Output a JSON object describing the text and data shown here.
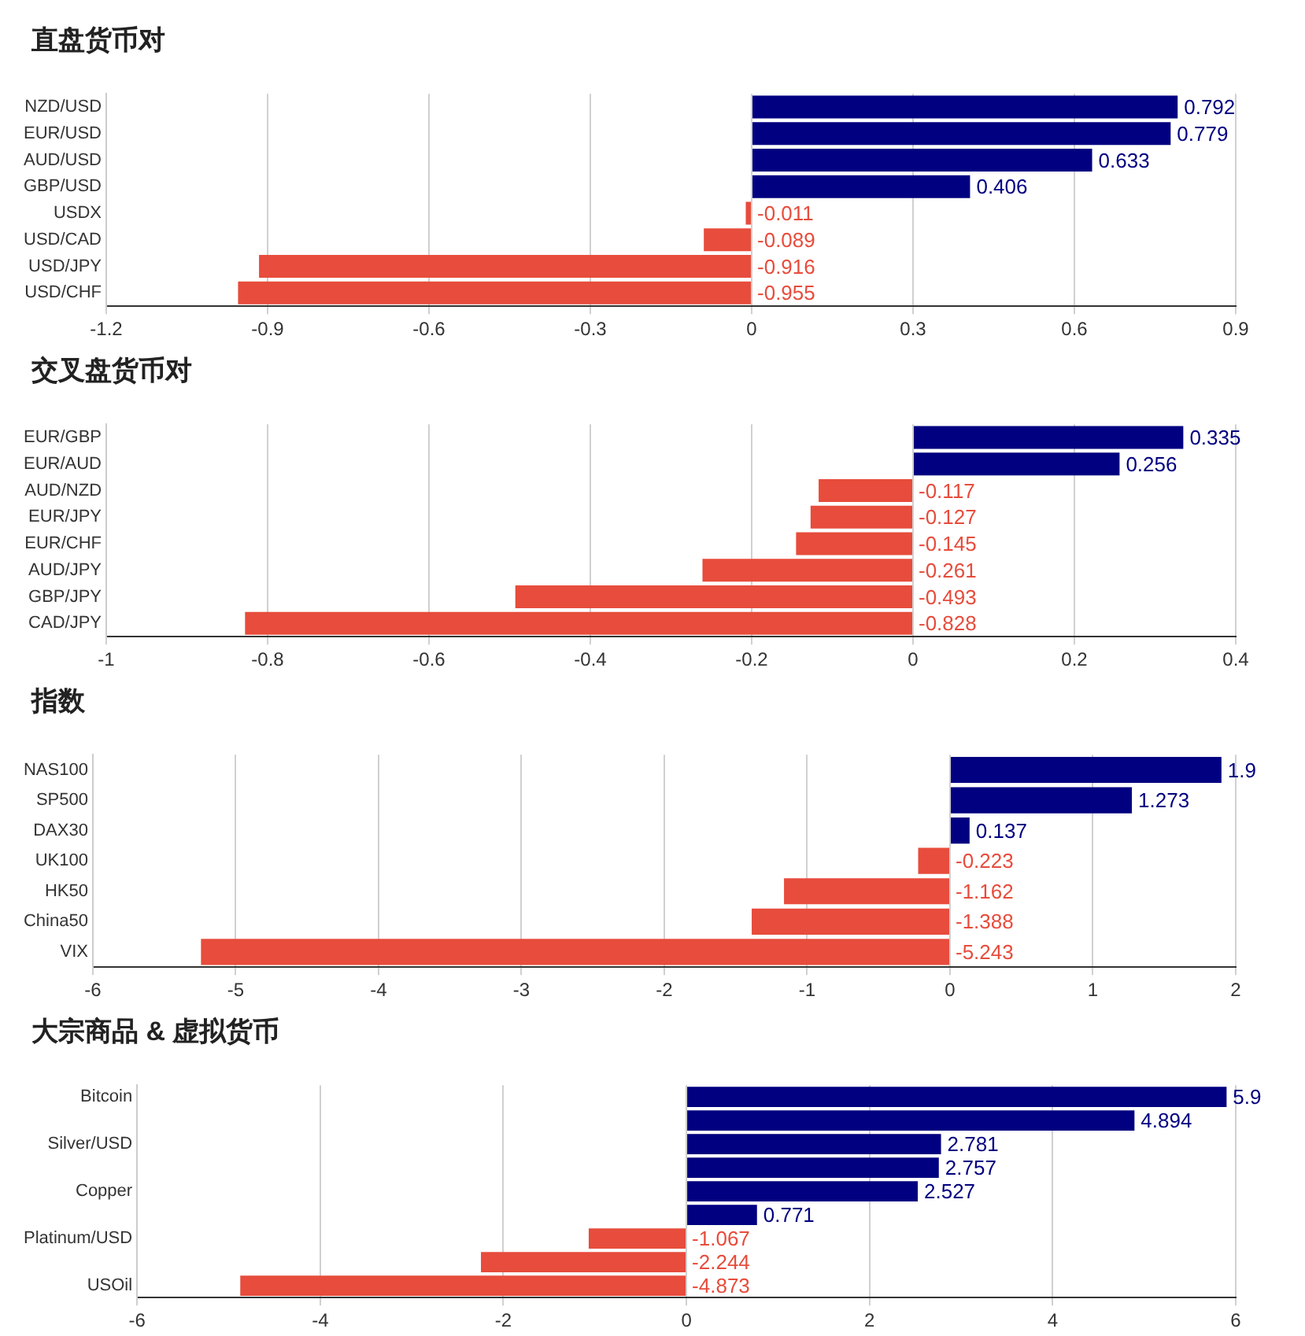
{
  "chart_data": [
    {
      "type": "bar",
      "title": "直盘货币对",
      "orientation": "horizontal",
      "categories": [
        "NZD/USD",
        "EUR/USD",
        "AUD/USD",
        "GBP/USD",
        "USDX",
        "USD/CAD",
        "USD/JPY",
        "USD/CHF"
      ],
      "values": [
        0.792,
        0.779,
        0.633,
        0.406,
        -0.011,
        -0.089,
        -0.916,
        -0.955
      ],
      "colors": [
        "#000080",
        "#000080",
        "#000080",
        "#000080",
        "#e74c3c",
        "#e74c3c",
        "#e74c3c",
        "#e74c3c"
      ],
      "xlim": [
        -1.2,
        0.9
      ],
      "xticks": [
        -1.2,
        -0.9,
        -0.6,
        -0.3,
        0,
        0.3,
        0.6,
        0.9
      ],
      "grid": "x",
      "data_labels": true
    },
    {
      "type": "bar",
      "title": "交叉盘货币对",
      "orientation": "horizontal",
      "categories": [
        "EUR/GBP",
        "EUR/AUD",
        "AUD/NZD",
        "EUR/JPY",
        "EUR/CHF",
        "AUD/JPY",
        "GBP/JPY",
        "CAD/JPY"
      ],
      "values": [
        0.335,
        0.256,
        -0.117,
        -0.127,
        -0.145,
        -0.261,
        -0.493,
        -0.828
      ],
      "colors": [
        "#000080",
        "#000080",
        "#e74c3c",
        "#e74c3c",
        "#e74c3c",
        "#e74c3c",
        "#e74c3c",
        "#e74c3c"
      ],
      "xlim": [
        -1,
        0.4
      ],
      "xticks": [
        -1,
        -0.8,
        -0.6,
        -0.4,
        -0.2,
        0,
        0.2,
        0.4
      ],
      "grid": "x",
      "data_labels": true
    },
    {
      "type": "bar",
      "title": "指数",
      "orientation": "horizontal",
      "categories": [
        "NAS100",
        "SP500",
        "DAX30",
        "UK100",
        "HK50",
        "China50",
        "VIX"
      ],
      "values": [
        1.9,
        1.273,
        0.137,
        -0.223,
        -1.162,
        -1.388,
        -5.243
      ],
      "colors": [
        "#000080",
        "#000080",
        "#000080",
        "#e74c3c",
        "#e74c3c",
        "#e74c3c",
        "#e74c3c"
      ],
      "xlim": [
        -6,
        2
      ],
      "xticks": [
        -6,
        -5,
        -4,
        -3,
        -2,
        -1,
        0,
        1,
        2
      ],
      "grid": "x",
      "data_labels": true
    },
    {
      "type": "bar",
      "title": "大宗商品 & 虚拟货币",
      "orientation": "horizontal",
      "categories": [
        "Bitcoin",
        null,
        "Silver/USD",
        null,
        "Copper",
        null,
        "Platinum/USD",
        null,
        "USOil"
      ],
      "values": [
        5.9,
        4.894,
        2.781,
        2.757,
        2.527,
        0.771,
        -1.067,
        -2.244,
        -4.873
      ],
      "colors": [
        "#000080",
        "#000080",
        "#000080",
        "#000080",
        "#000080",
        "#000080",
        "#e74c3c",
        "#e74c3c",
        "#e74c3c"
      ],
      "xlim": [
        -6,
        6
      ],
      "xticks": [
        -6,
        -4,
        -2,
        0,
        2,
        4,
        6
      ],
      "grid": "x",
      "data_labels": true
    }
  ]
}
